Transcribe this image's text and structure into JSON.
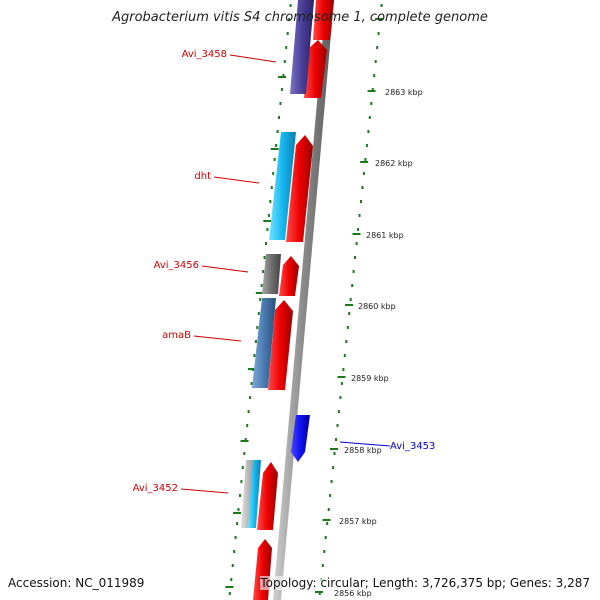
{
  "title": "Agrobacterium vitis S4 chromosome 1, complete genome",
  "accession": "Accession: NC_011989",
  "stats": "Topology: circular; Length: 3,726,375 bp; Genes: 3,287",
  "colors": {
    "red_label": "#cc0000",
    "blue_label": "#0000cc",
    "tick": "#1a7a1a",
    "backbone": "#8a8a8a"
  },
  "gene_labels": [
    {
      "name": "Avi_3458",
      "color": "#cc0000"
    },
    {
      "name": "dht",
      "color": "#cc0000"
    },
    {
      "name": "Avi_3456",
      "color": "#cc0000"
    },
    {
      "name": "amaB",
      "color": "#cc0000"
    },
    {
      "name": "Avi_3452",
      "color": "#cc0000"
    },
    {
      "name": "Avi_3453",
      "color": "#0000cc"
    }
  ],
  "scale_labels": [
    "2863 kbp",
    "2862 kbp",
    "2861 kbp",
    "2860 kbp",
    "2859 kbp",
    "2858 kbp",
    "2857 kbp",
    "2856 kbp"
  ]
}
